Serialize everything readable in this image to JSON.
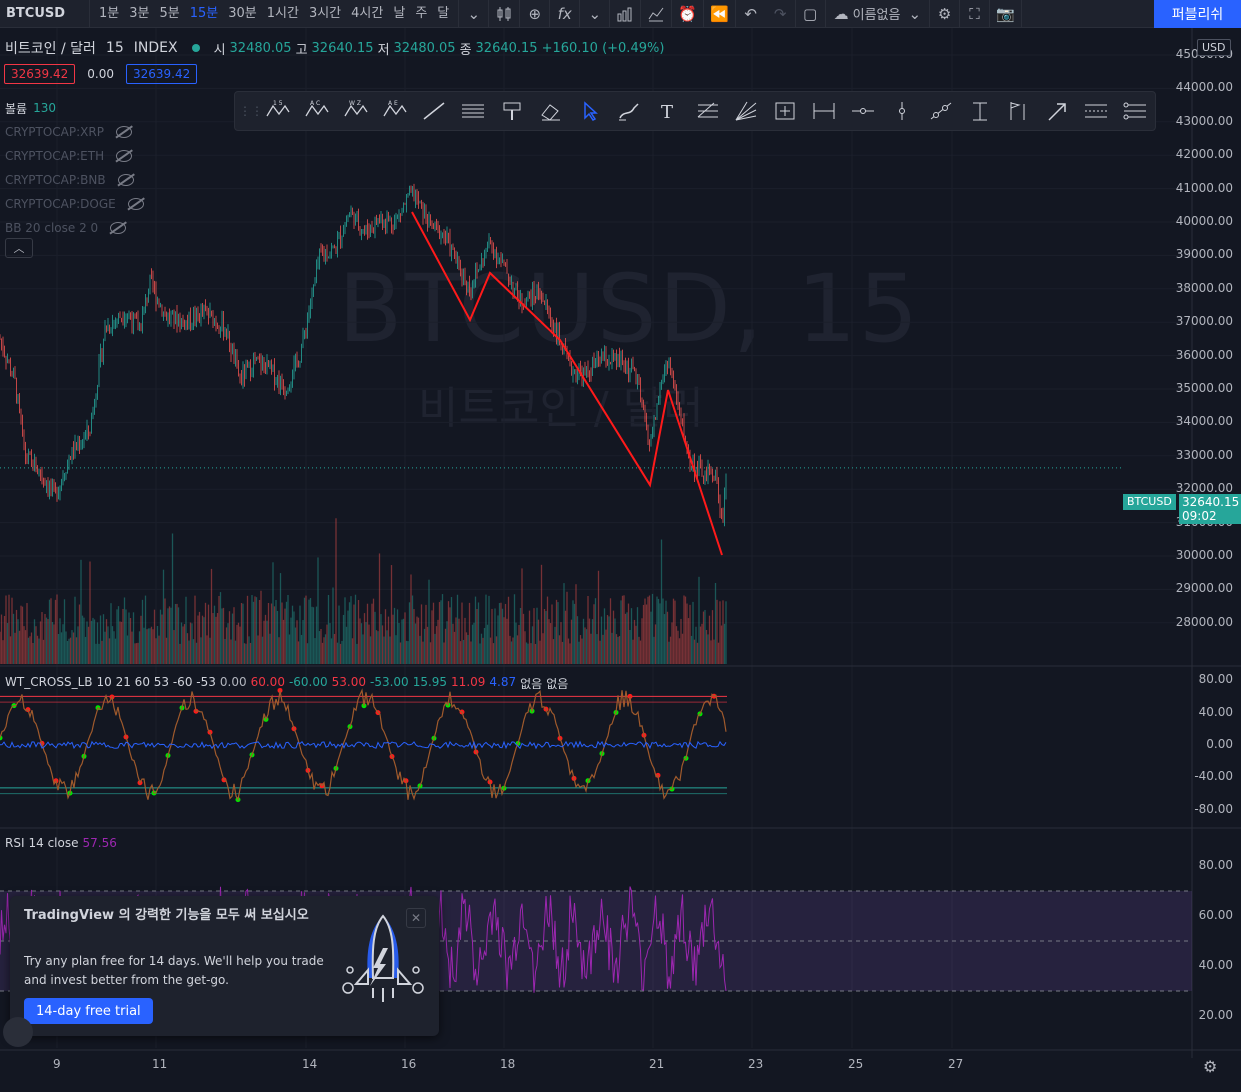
{
  "topbar": {
    "symbol": "BTCUSD",
    "intervals": [
      {
        "label": "1분",
        "active": false
      },
      {
        "label": "3분",
        "active": false
      },
      {
        "label": "5분",
        "active": false
      },
      {
        "label": "15분",
        "active": true
      },
      {
        "label": "30분",
        "active": false
      },
      {
        "label": "1시간",
        "active": false
      },
      {
        "label": "3시간",
        "active": false
      },
      {
        "label": "4시간",
        "active": false
      },
      {
        "label": "날",
        "active": false
      },
      {
        "label": "주",
        "active": false
      },
      {
        "label": "달",
        "active": false
      }
    ],
    "layout_name": "이름없음",
    "publish_label": "퍼블리쉬"
  },
  "legend": {
    "title": "비트코인 / 달러",
    "interval": "15",
    "exchange": "INDEX",
    "open_label": "시",
    "open": "32480.05",
    "high_label": "고",
    "high": "32640.15",
    "low_label": "저",
    "low": "32480.05",
    "close_label": "종",
    "close": "32640.15",
    "change": "+160.10 (+0.49%)",
    "bid": "32639.42",
    "spread": "0.00",
    "ask": "32639.42"
  },
  "indicators": {
    "volume_label": "볼륨",
    "volume_value": "130",
    "hidden": [
      "CRYPTOCAP:XRP",
      "CRYPTOCAP:ETH",
      "CRYPTOCAP:BNB",
      "CRYPTOCAP:DOGE",
      "BB 20 close 2 0"
    ]
  },
  "watermark": {
    "symbol": "BTCUSD, 15",
    "name": "비트코인 / 달러"
  },
  "price_axis": {
    "currency": "USD",
    "labels": [
      "45000.00",
      "44000.00",
      "43000.00",
      "42000.00",
      "41000.00",
      "40000.00",
      "39000.00",
      "38000.00",
      "37000.00",
      "36000.00",
      "35000.00",
      "34000.00",
      "33000.00",
      "32000.00",
      "31000.00",
      "30000.00",
      "29000.00",
      "28000.00"
    ],
    "last_symbol": "BTCUSD",
    "last_price": "32640.15",
    "countdown": "09:02"
  },
  "wt_cross": {
    "name": "WT_CROSS_LB",
    "params": "10 21 60 53 -60 -53",
    "values": [
      {
        "v": "0.00",
        "c": "#b2b5be"
      },
      {
        "v": "60.00",
        "c": "#f23645"
      },
      {
        "v": "-60.00",
        "c": "#26a69a"
      },
      {
        "v": "53.00",
        "c": "#f23645"
      },
      {
        "v": "-53.00",
        "c": "#26a69a"
      },
      {
        "v": "15.95",
        "c": "#26a69a"
      },
      {
        "v": "11.09",
        "c": "#f23645"
      },
      {
        "v": "4.87",
        "c": "#2962ff"
      },
      {
        "v": "없음",
        "c": "#d1d4dc"
      },
      {
        "v": "없음",
        "c": "#d1d4dc"
      }
    ],
    "axis": [
      "80.00",
      "40.00",
      "0.00",
      "-40.00",
      "-80.00"
    ]
  },
  "rsi": {
    "name": "RSI",
    "params": "14 close",
    "value": "57.56",
    "axis": [
      "80.00",
      "60.00",
      "40.00",
      "20.00"
    ]
  },
  "time_axis": [
    "9",
    "11",
    "14",
    "16",
    "18",
    "21",
    "23",
    "25",
    "27"
  ],
  "popup": {
    "title": "TradingView 의 강력한 기능을 모두 써 보십시오",
    "text": "Try any plan free for 14 days. We'll help you trade and invest better from the get-go.",
    "button": "14-day free trial"
  },
  "colors": {
    "up": "#26a69a",
    "down": "#ef5350",
    "accent": "#2962ff",
    "trendline": "#ff1a1a",
    "rsi": "#9c27b0"
  }
}
